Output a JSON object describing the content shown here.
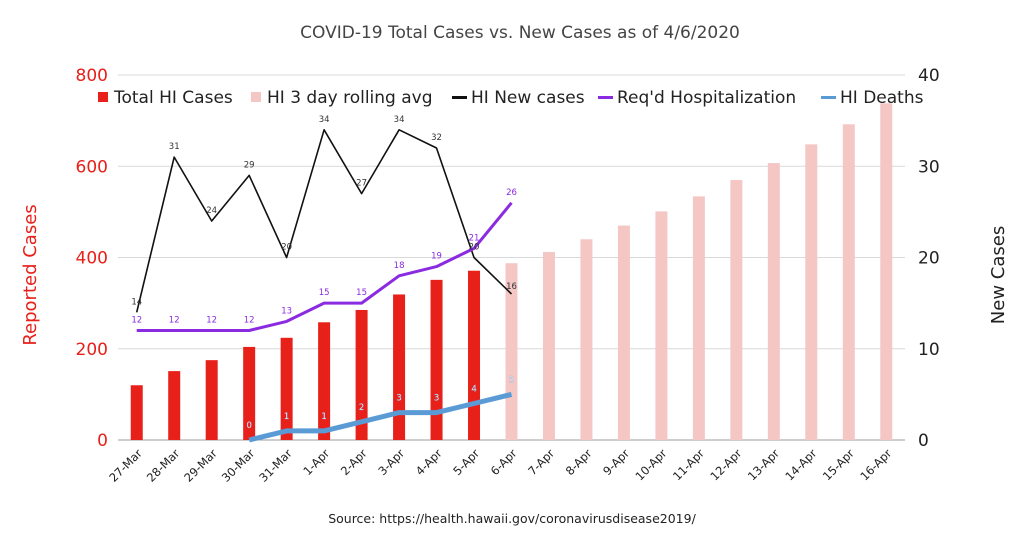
{
  "chart_data": {
    "type": "bar",
    "title": "COVID-19 Total Cases vs. New Cases as of 4/6/2020",
    "source": "Source: https://health.hawaii.gov/coronavirusdisease2019/",
    "categories": [
      "27-Mar",
      "28-Mar",
      "29-Mar",
      "30-Mar",
      "31-Mar",
      "1-Apr",
      "2-Apr",
      "3-Apr",
      "4-Apr",
      "5-Apr",
      "6-Apr",
      "7-Apr",
      "8-Apr",
      "9-Apr",
      "10-Apr",
      "11-Apr",
      "12-Apr",
      "13-Apr",
      "14-Apr",
      "15-Apr",
      "16-Apr"
    ],
    "ylabel_left": "Reported Cases",
    "ylabel_right": "New Cases",
    "ylim_left": [
      0,
      800
    ],
    "ylim_right": [
      0,
      40
    ],
    "yticks_left": [
      "0",
      "200",
      "400",
      "600",
      "800"
    ],
    "yticks_right": [
      "0",
      "10",
      "20",
      "30",
      "40"
    ],
    "grid": true,
    "legend_position": "top",
    "series": [
      {
        "name": "Total HI Cases",
        "kind": "bar",
        "axis": "left",
        "color": "#e8201a",
        "values": [
          120,
          151,
          175,
          204,
          224,
          258,
          285,
          319,
          351,
          371,
          387,
          null,
          null,
          null,
          null,
          null,
          null,
          null,
          null,
          null,
          null
        ]
      },
      {
        "name": "HI 3 day rolling avg",
        "kind": "bar",
        "axis": "left",
        "color": "#f4c7c5",
        "values": [
          null,
          null,
          null,
          null,
          null,
          null,
          null,
          null,
          null,
          null,
          387,
          412,
          440,
          470,
          501,
          534,
          570,
          607,
          648,
          692,
          738
        ]
      },
      {
        "name": "HI New cases",
        "kind": "line",
        "axis": "right",
        "color": "#111111",
        "values": [
          14,
          31,
          24,
          29,
          20,
          34,
          27,
          34,
          32,
          20,
          16,
          null,
          null,
          null,
          null,
          null,
          null,
          null,
          null,
          null,
          null
        ],
        "labels": [
          "14",
          "31",
          "24",
          "29",
          "20",
          "34",
          "27",
          "34",
          "32",
          "20",
          "16",
          "",
          "",
          "",
          "",
          "",
          "",
          "",
          "",
          "",
          ""
        ]
      },
      {
        "name": "Req'd Hospitalization",
        "kind": "line",
        "axis": "right",
        "color": "#8a2be2",
        "values": [
          12,
          12,
          12,
          12,
          13,
          15,
          15,
          18,
          19,
          21,
          26,
          null,
          null,
          null,
          null,
          null,
          null,
          null,
          null,
          null,
          null
        ],
        "labels": [
          "12",
          "12",
          "12",
          "12",
          "13",
          "15",
          "15",
          "18",
          "19",
          "21",
          "26",
          "",
          "",
          "",
          "",
          "",
          "",
          "",
          "",
          "",
          ""
        ]
      },
      {
        "name": "HI Deaths",
        "kind": "line",
        "axis": "right",
        "color": "#5b9bd5",
        "values": [
          null,
          null,
          null,
          0,
          1,
          1,
          2,
          3,
          3,
          4,
          5,
          null,
          null,
          null,
          null,
          null,
          null,
          null,
          null,
          null,
          null
        ],
        "labels": [
          "",
          "",
          "",
          "0",
          "1",
          "1",
          "2",
          "3",
          "3",
          "4",
          "5",
          "",
          "",
          "",
          "",
          "",
          "",
          "",
          "",
          "",
          ""
        ]
      }
    ]
  }
}
